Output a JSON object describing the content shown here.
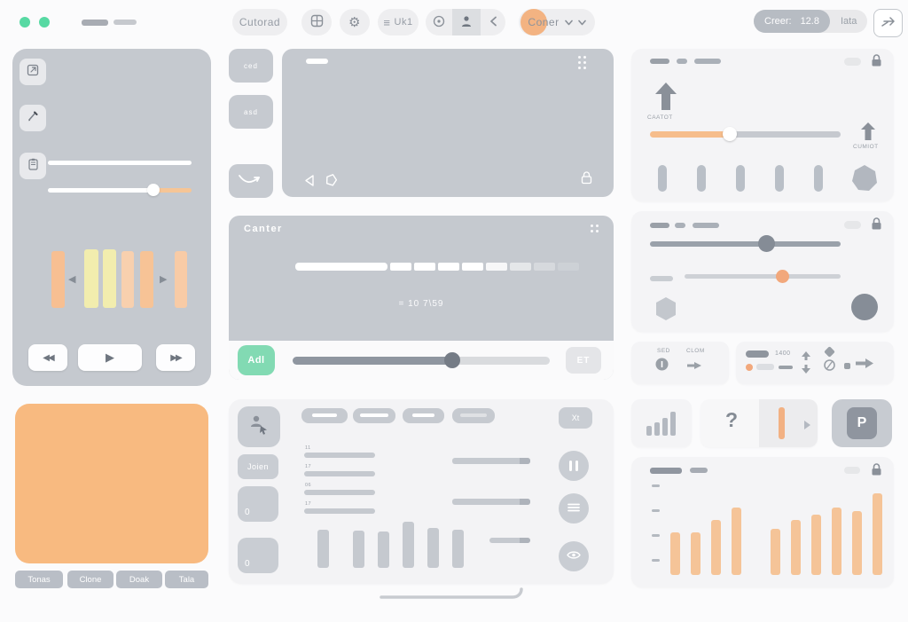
{
  "colors": {
    "mint_dot": "#57d9a3",
    "accent_orange": "#f6b97f",
    "panel_gray": "#c5c9cf",
    "green_button": "#82dab3",
    "dark_icon": "#878d96"
  },
  "topbar": {
    "cutorad_label": "Cutorad",
    "uk_label": "Uk1",
    "coner_label": "Coner",
    "creer_label": "Creer:",
    "creer_value": "12.8",
    "iata_label": "Iata"
  },
  "tool_column": {
    "ced_label": "ced",
    "asd_label": "asd"
  },
  "left_panel": {
    "bar_colors": [
      "#f7bf92",
      "#f2edae",
      "#f2edae",
      "#f8d0ae",
      "#f7c396",
      "#f8cba6"
    ],
    "rewind_glyph": "◀◀",
    "play_glyph": "▶",
    "forward_glyph": "▶▶",
    "seek_back_glyph": "◀",
    "seek_fwd_glyph": "▶"
  },
  "canter_panel": {
    "title": "Canter",
    "caption": "= 10 7\\59",
    "add_label": "Adl",
    "et_label": "ET"
  },
  "right_top_panel": {
    "upload_label": "CAATOT",
    "upload_label_2": "CUMIOT"
  },
  "sed_panel": {
    "sed_label": "SED",
    "clom_label": "CLOM"
  },
  "value_panel": {
    "value": "1400"
  },
  "cards_row": {
    "question_mark": "?",
    "p_letter": "P"
  },
  "orange_section": {
    "buttons": [
      "Tonas",
      "Clone",
      "Doak",
      "Tala"
    ]
  },
  "bottom_middle": {
    "join_label": "Joien",
    "zero1": "0",
    "zero2": "0",
    "xt_label": "Xt",
    "row_labels": [
      "11",
      "17",
      "06",
      "17"
    ],
    "chart_values": [
      43,
      42,
      41,
      52,
      45,
      43
    ]
  },
  "chart_data": {
    "type": "bar",
    "values": [
      48,
      48,
      62,
      76,
      52,
      62,
      68,
      76,
      72,
      92
    ],
    "title": "",
    "bar_color": "#f5c498"
  }
}
